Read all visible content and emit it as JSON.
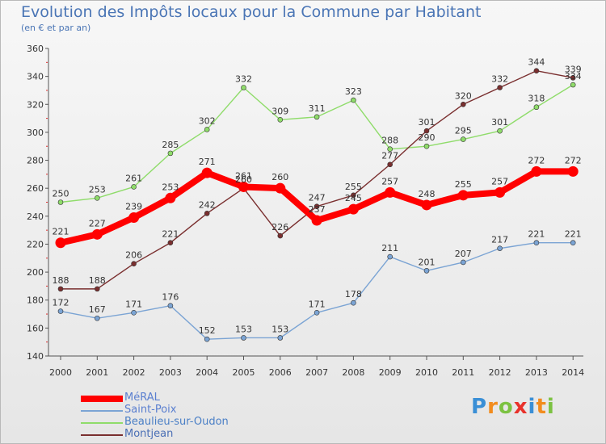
{
  "header": {
    "title": "Evolution des Impôts locaux pour la Commune par Habitant",
    "subtitle": "(en € et par an)"
  },
  "chart_data": {
    "type": "line",
    "title": "Evolution des Impôts locaux pour la Commune par Habitant",
    "subtitle": "(en € et par an)",
    "xlabel": "",
    "ylabel": "",
    "x": [
      "2000",
      "2001",
      "2002",
      "2003",
      "2004",
      "2005",
      "2006",
      "2007",
      "2008",
      "2009",
      "2010",
      "2011",
      "2012",
      "2013",
      "2014"
    ],
    "ylim": [
      140,
      360
    ],
    "yticks": [
      140,
      160,
      180,
      200,
      220,
      240,
      260,
      280,
      300,
      320,
      340,
      360
    ],
    "grid": false,
    "legend": "bottom-left",
    "series": [
      {
        "name": "MéRAL",
        "color": "#ff0000",
        "values": [
          221,
          227,
          239,
          253,
          271,
          261,
          260,
          237,
          245,
          257,
          248,
          255,
          257,
          272,
          272
        ]
      },
      {
        "name": "Saint-Poix",
        "color": "#7ba4d4",
        "values": [
          172,
          167,
          171,
          176,
          152,
          153,
          153,
          171,
          178,
          211,
          201,
          207,
          217,
          221,
          221
        ]
      },
      {
        "name": "Beaulieu-sur-Oudon",
        "color": "#8fdc6a",
        "values": [
          250,
          253,
          261,
          285,
          302,
          332,
          309,
          311,
          323,
          288,
          290,
          295,
          301,
          318,
          334
        ]
      },
      {
        "name": "Montjean",
        "color": "#7a2f2f",
        "values": [
          188,
          188,
          206,
          221,
          242,
          260,
          226,
          247,
          255,
          277,
          301,
          320,
          332,
          344,
          339
        ]
      }
    ]
  },
  "logo": {
    "letters": [
      "P",
      "r",
      "o",
      "x",
      "i",
      "t",
      "i"
    ],
    "colors": [
      "#3a8fd6",
      "#f28c1e",
      "#7cc242",
      "#e8322b",
      "#3a8fd6",
      "#f28c1e",
      "#7cc242"
    ]
  }
}
